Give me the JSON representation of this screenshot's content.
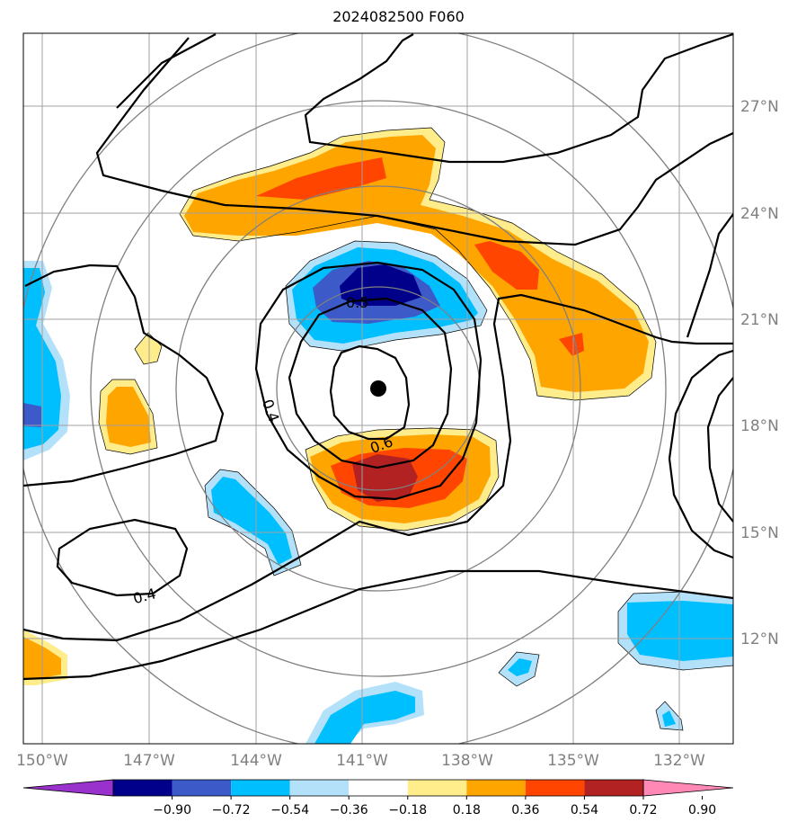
{
  "title": "2024082500 F060",
  "lat_labels": [
    "27°N",
    "24°N",
    "21°N",
    "18°N",
    "15°N",
    "12°N"
  ],
  "lon_labels": [
    "150°W",
    "147°W",
    "144°W",
    "141°W",
    "138°W",
    "135°W",
    "132°W"
  ],
  "colorbar": {
    "ticks": [
      "−0.90",
      "−0.72",
      "−0.54",
      "−0.36",
      "−0.18",
      "0.18",
      "0.36",
      "0.54",
      "0.72",
      "0.90"
    ],
    "colors": [
      "#9932cc",
      "#00008b",
      "#3c5ac8",
      "#00bfff",
      "#b4e1fa",
      "#ffffff",
      "#ffec8b",
      "#ffa500",
      "#ff4500",
      "#b22222",
      "#ff88b4"
    ]
  },
  "contour_labels": [
    "0.4",
    "0.5",
    "0.6",
    "0.4"
  ],
  "center_marker": "storm-center"
}
